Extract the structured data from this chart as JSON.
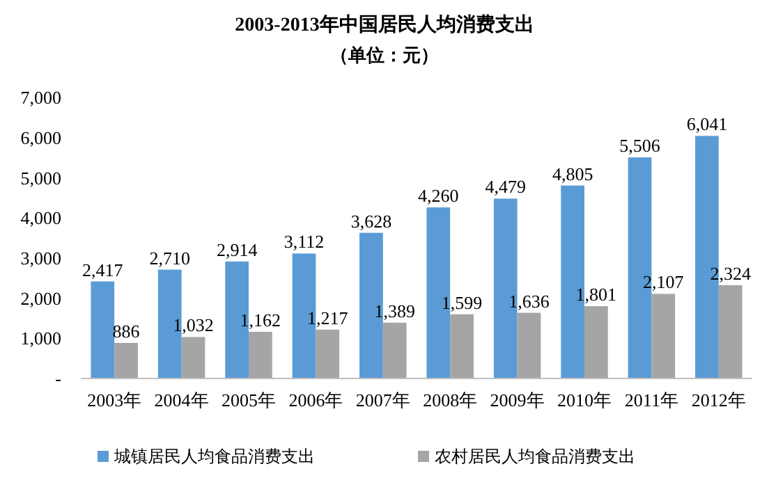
{
  "chart_data": {
    "type": "bar",
    "title": "2003-2013年中国居民人均消费支出",
    "subtitle": "（单位：元）",
    "categories": [
      "2003年",
      "2004年",
      "2005年",
      "2006年",
      "2007年",
      "2008年",
      "2009年",
      "2010年",
      "2011年",
      "2012年"
    ],
    "series": [
      {
        "name": "城镇居民人均食品消费支出",
        "color": "#5b9bd5",
        "values": [
          2417,
          2710,
          2914,
          3112,
          3628,
          4260,
          4479,
          4805,
          5506,
          6041
        ],
        "value_labels": [
          "2,417",
          "2,710",
          "2,914",
          "3,112",
          "3,628",
          "4,260",
          "4,479",
          "4,805",
          "5,506",
          "6,041"
        ]
      },
      {
        "name": "农村居民人均食品消费支出",
        "color": "#a5a5a5",
        "values": [
          886,
          1032,
          1162,
          1217,
          1389,
          1599,
          1636,
          1801,
          2107,
          2324
        ],
        "value_labels": [
          "886",
          "1,032",
          "1,162",
          "1,217",
          "1,389",
          "1,599",
          "1,636",
          "1,801",
          "2,107",
          "2,324"
        ]
      }
    ],
    "ylim": [
      0,
      7000
    ],
    "yticks": [
      {
        "value": 0,
        "label": "-"
      },
      {
        "value": 1000,
        "label": "1,000"
      },
      {
        "value": 2000,
        "label": "2,000"
      },
      {
        "value": 3000,
        "label": "3,000"
      },
      {
        "value": 4000,
        "label": "4,000"
      },
      {
        "value": 5000,
        "label": "5,000"
      },
      {
        "value": 6000,
        "label": "6,000"
      },
      {
        "value": 7000,
        "label": "7,000"
      }
    ],
    "grid": false,
    "legend": "bottom"
  }
}
